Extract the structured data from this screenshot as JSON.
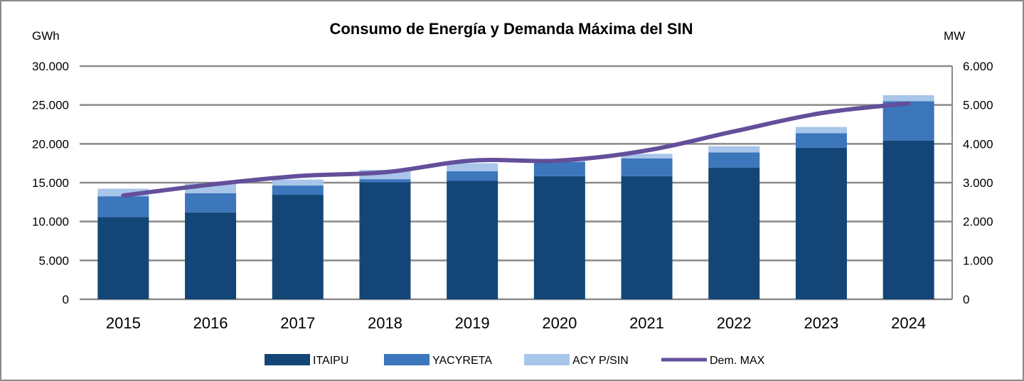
{
  "chart_data": {
    "type": "bar",
    "stacked": true,
    "title": "Consumo de Energía y Demanda Máxima del SIN",
    "ylabel": "GWh",
    "y2label": "MW",
    "ylim": [
      0,
      30000
    ],
    "y2lim": [
      0,
      6000
    ],
    "yticks": [
      "0",
      "5.000",
      "10.000",
      "15.000",
      "20.000",
      "25.000",
      "30.000"
    ],
    "y2ticks": [
      "0",
      "1.000",
      "2.000",
      "3.000",
      "4.000",
      "5.000",
      "6.000"
    ],
    "grid": true,
    "legend_position": "bottom",
    "categories": [
      "2015",
      "2016",
      "2017",
      "2018",
      "2019",
      "2020",
      "2021",
      "2022",
      "2023",
      "2024"
    ],
    "series": [
      {
        "name": "ITAIPU",
        "type": "bar",
        "axis": "left",
        "color": "#134677",
        "values": [
          10560,
          11180,
          13440,
          15050,
          15230,
          15850,
          15850,
          16950,
          19510,
          20430
        ]
      },
      {
        "name": "YACYRETA",
        "type": "bar",
        "axis": "left",
        "color": "#3c76bb",
        "values": [
          2690,
          2470,
          1190,
          400,
          1230,
          1830,
          2260,
          1950,
          1860,
          5060
        ]
      },
      {
        "name": "ACY P/SIN",
        "type": "bar",
        "axis": "left",
        "color": "#a8c5ea",
        "values": [
          980,
          1280,
          770,
          1190,
          1040,
          120,
          600,
          790,
          800,
          770
        ]
      },
      {
        "name": "Dem. MAX",
        "type": "line",
        "axis": "right",
        "color": "#634f9b",
        "values": [
          2670,
          2950,
          3170,
          3270,
          3570,
          3570,
          3830,
          4320,
          4790,
          5040
        ]
      }
    ]
  }
}
